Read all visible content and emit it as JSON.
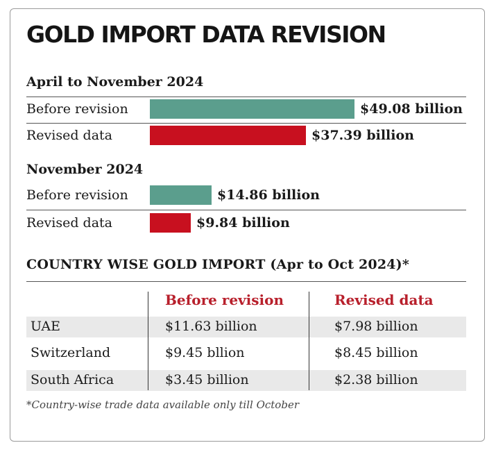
{
  "title": "GOLD IMPORT DATA REVISION",
  "colors": {
    "before": "#5b9e8d",
    "revised": "#c8101f",
    "header_red": "#b8202c"
  },
  "chart_data": [
    {
      "type": "bar",
      "title": "April to November 2024",
      "categories": [
        "Before revision",
        "Revised data"
      ],
      "values": [
        49.08,
        37.39
      ],
      "value_labels": [
        "$49.08 billion",
        "$37.39 billion"
      ],
      "unit": "billion USD"
    },
    {
      "type": "bar",
      "title": "November 2024",
      "categories": [
        "Before revision",
        "Revised data"
      ],
      "values": [
        14.86,
        9.84
      ],
      "value_labels": [
        "$14.86 billion",
        "$9.84 billion"
      ],
      "unit": "billion USD"
    },
    {
      "type": "table",
      "title": "COUNTRY WISE GOLD IMPORT (Apr to Oct 2024)*",
      "columns": [
        "",
        "Before revision",
        "Revised data"
      ],
      "rows": [
        [
          "UAE",
          "$11.63 billion",
          "$7.98 billion"
        ],
        [
          "Switzerland",
          "$9.45 bllion",
          "$8.45 billion"
        ],
        [
          "South Africa",
          "$3.45 billion",
          "$2.38 billion"
        ]
      ]
    }
  ],
  "footnote": "*Country-wise trade data available only till October"
}
